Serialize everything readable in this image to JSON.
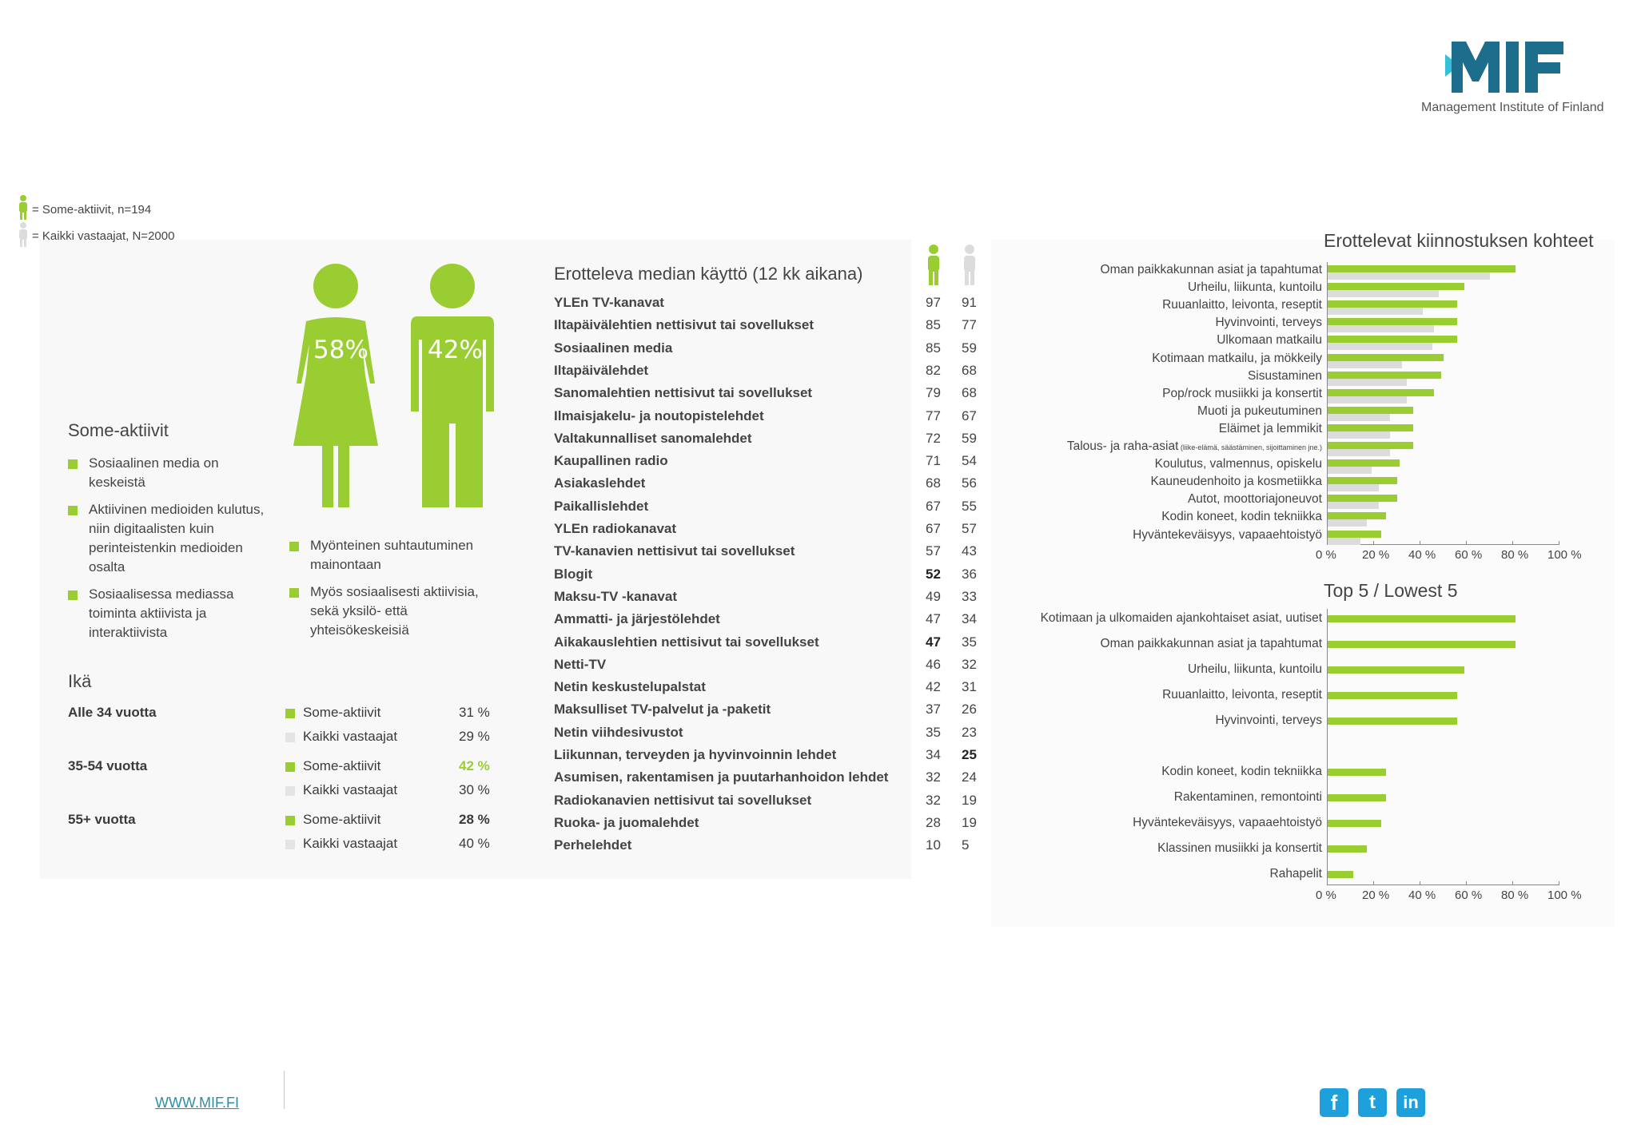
{
  "logo": {
    "subtitle": "Management Institute of Finland"
  },
  "legend": [
    {
      "label": "= Some-aktiivit, n=194"
    },
    {
      "label": "= Kaikki vastaajat, N=2000"
    }
  ],
  "figures": {
    "female_pct": "58%",
    "male_pct": "42%"
  },
  "profile": {
    "title": "Some-aktiivit",
    "bullets_left": [
      "Sosiaalinen media on keskeistä",
      "Aktiivinen medioiden kulutus, niin digitaalisten kuin perinteistenkin medioiden osalta",
      "Sosiaalisessa mediassa toiminta aktiivista ja interaktiivista"
    ],
    "bullets_right": [
      "Myönteinen suhtautuminen mainontaan",
      "Myös sosiaalisesti aktiivisia, sekä yksilö- että yhteisökeskeisiä"
    ]
  },
  "age": {
    "title": "Ikä",
    "groups": [
      {
        "label": "Alle 34 vuotta",
        "some_label": "Some-aktiivit",
        "some_value": "31 %",
        "all_label": "Kaikki vastaajat",
        "all_value": "29 %"
      },
      {
        "label": "35-54 vuotta",
        "some_label": "Some-aktiivit",
        "some_value": "42 %",
        "all_label": "Kaikki vastaajat",
        "all_value": "30 %"
      },
      {
        "label": "55+ vuotta",
        "some_label": "Some-aktiivit",
        "some_value": "28 %",
        "all_label": "Kaikki vastaajat",
        "all_value": "40 %"
      }
    ]
  },
  "media": {
    "title": "Erotteleva median käyttö (12 kk aikana)",
    "rows": [
      {
        "label": "YLEn TV-kanavat",
        "some": "97",
        "all": "91"
      },
      {
        "label": "Iltapäivälehtien nettisivut tai sovellukset",
        "some": "85",
        "all": "77"
      },
      {
        "label": "Sosiaalinen media",
        "some": "85",
        "all": "59"
      },
      {
        "label": "Iltapäivälehdet",
        "some": "82",
        "all": "68"
      },
      {
        "label": "Sanomalehtien nettisivut tai sovellukset",
        "some": "79",
        "all": "68"
      },
      {
        "label": "Ilmaisjakelu- ja noutopistelehdet",
        "some": "77",
        "all": "67"
      },
      {
        "label": "Valtakunnalliset sanomalehdet",
        "some": "72",
        "all": "59"
      },
      {
        "label": "Kaupallinen radio",
        "some": "71",
        "all": "54"
      },
      {
        "label": "Asiakaslehdet",
        "some": "68",
        "all": "56"
      },
      {
        "label": "Paikallislehdet",
        "some": "67",
        "all": "55"
      },
      {
        "label": "YLEn radiokanavat",
        "some": "67",
        "all": "57"
      },
      {
        "label": "TV-kanavien nettisivut tai sovellukset",
        "some": "57",
        "all": "43"
      },
      {
        "label": "Blogit",
        "some": "52",
        "all": "36"
      },
      {
        "label": "Maksu-TV -kanavat",
        "some": "49",
        "all": "33"
      },
      {
        "label": "Ammatti- ja järjestölehdet",
        "some": "47",
        "all": "34"
      },
      {
        "label": "Aikakauslehtien nettisivut tai sovellukset",
        "some": "47",
        "all": "35"
      },
      {
        "label": "Netti-TV",
        "some": "46",
        "all": "32"
      },
      {
        "label": "Netin keskustelupalstat",
        "some": "42",
        "all": "31"
      },
      {
        "label": "Maksulliset TV-palvelut ja -paketit",
        "some": "37",
        "all": "26"
      },
      {
        "label": "Netin viihdesivustot",
        "some": "35",
        "all": "23"
      },
      {
        "label": "Liikunnan, terveyden ja hyvinvoinnin lehdet",
        "some": "34",
        "all": "25"
      },
      {
        "label": "Asumisen, rakentamisen ja puutarhanhoidon lehdet",
        "some": "32",
        "all": "24"
      },
      {
        "label": "Radiokanavien nettisivut tai sovellukset",
        "some": "32",
        "all": "19"
      },
      {
        "label": "Ruoka- ja juomalehdet",
        "some": "28",
        "all": "19"
      },
      {
        "label": "Perhelehdet",
        "some": "10",
        "all": "5"
      }
    ]
  },
  "chart_data": [
    {
      "type": "bar",
      "orientation": "horizontal",
      "title": "Erottelevat kiinnostuksen kohteet",
      "categories": [
        "Oman paikkakunnan asiat ja tapahtumat",
        "Urheilu, liikunta, kuntoilu",
        "Ruuanlaitto, leivonta, reseptit",
        "Hyvinvointi, terveys",
        "Ulkomaan matkailu",
        "Kotimaan matkailu, ja mökkeily",
        "Sisustaminen",
        "Pop/rock musiikki ja konsertit",
        "Muoti ja pukeutuminen",
        "Eläimet ja lemmikit",
        "Talous- ja raha-asiat",
        "Koulutus, valmennus, opiskelu",
        "Kauneudenhoito ja kosmetiikka",
        "Autot, moottoriajoneuvot",
        "Kodin koneet, kodin tekniikka",
        "Hyväntekeväisyys, vapaaehtoistyö"
      ],
      "category_notes": {
        "Talous- ja raha-asiat": "(liike-elämä, säästäminen, sijoittaminen jne.)"
      },
      "series": [
        {
          "name": "Some-aktiivit",
          "color": "#9acd32",
          "values": [
            81,
            59,
            56,
            56,
            56,
            50,
            49,
            46,
            37,
            37,
            37,
            31,
            30,
            30,
            25,
            23
          ]
        },
        {
          "name": "Kaikki vastaajat",
          "color": "#dcdcdc",
          "values": [
            70,
            48,
            41,
            46,
            45,
            32,
            34,
            34,
            27,
            27,
            27,
            19,
            22,
            22,
            17,
            14
          ]
        }
      ],
      "xlim": [
        0,
        100
      ],
      "xticks": [
        "0 %",
        "20 %",
        "40 %",
        "60 %",
        "80 %",
        "100 %"
      ]
    },
    {
      "type": "bar",
      "orientation": "horizontal",
      "title": "Top 5 / Lowest 5",
      "categories": [
        "Kotimaan ja ulkomaiden ajankohtaiset asiat, uutiset",
        "Oman paikkakunnan asiat ja tapahtumat",
        "Urheilu, liikunta, kuntoilu",
        "Ruuanlaitto, leivonta, reseptit",
        "Hyvinvointi, terveys",
        "",
        "Kodin koneet, kodin tekniikka",
        "Rakentaminen, remontointi",
        "Hyväntekeväisyys, vapaaehtoistyö",
        "Klassinen musiikki ja konsertit",
        "Rahapelit"
      ],
      "series": [
        {
          "name": "Some-aktiivit",
          "color": "#9acd32",
          "values": [
            81,
            81,
            59,
            56,
            56,
            null,
            25,
            25,
            23,
            17,
            11
          ]
        }
      ],
      "xlim": [
        0,
        100
      ],
      "xticks": [
        "0 %",
        "20 %",
        "40 %",
        "60 %",
        "80 %",
        "100 %"
      ]
    }
  ],
  "footer": {
    "url": "WWW.MIF.FI"
  },
  "social": [
    "facebook-icon",
    "twitter-icon",
    "linkedin-icon"
  ],
  "colors": {
    "accent": "#9acd32",
    "grey": "#dcdcdc",
    "brand": "#1d6e8c"
  }
}
